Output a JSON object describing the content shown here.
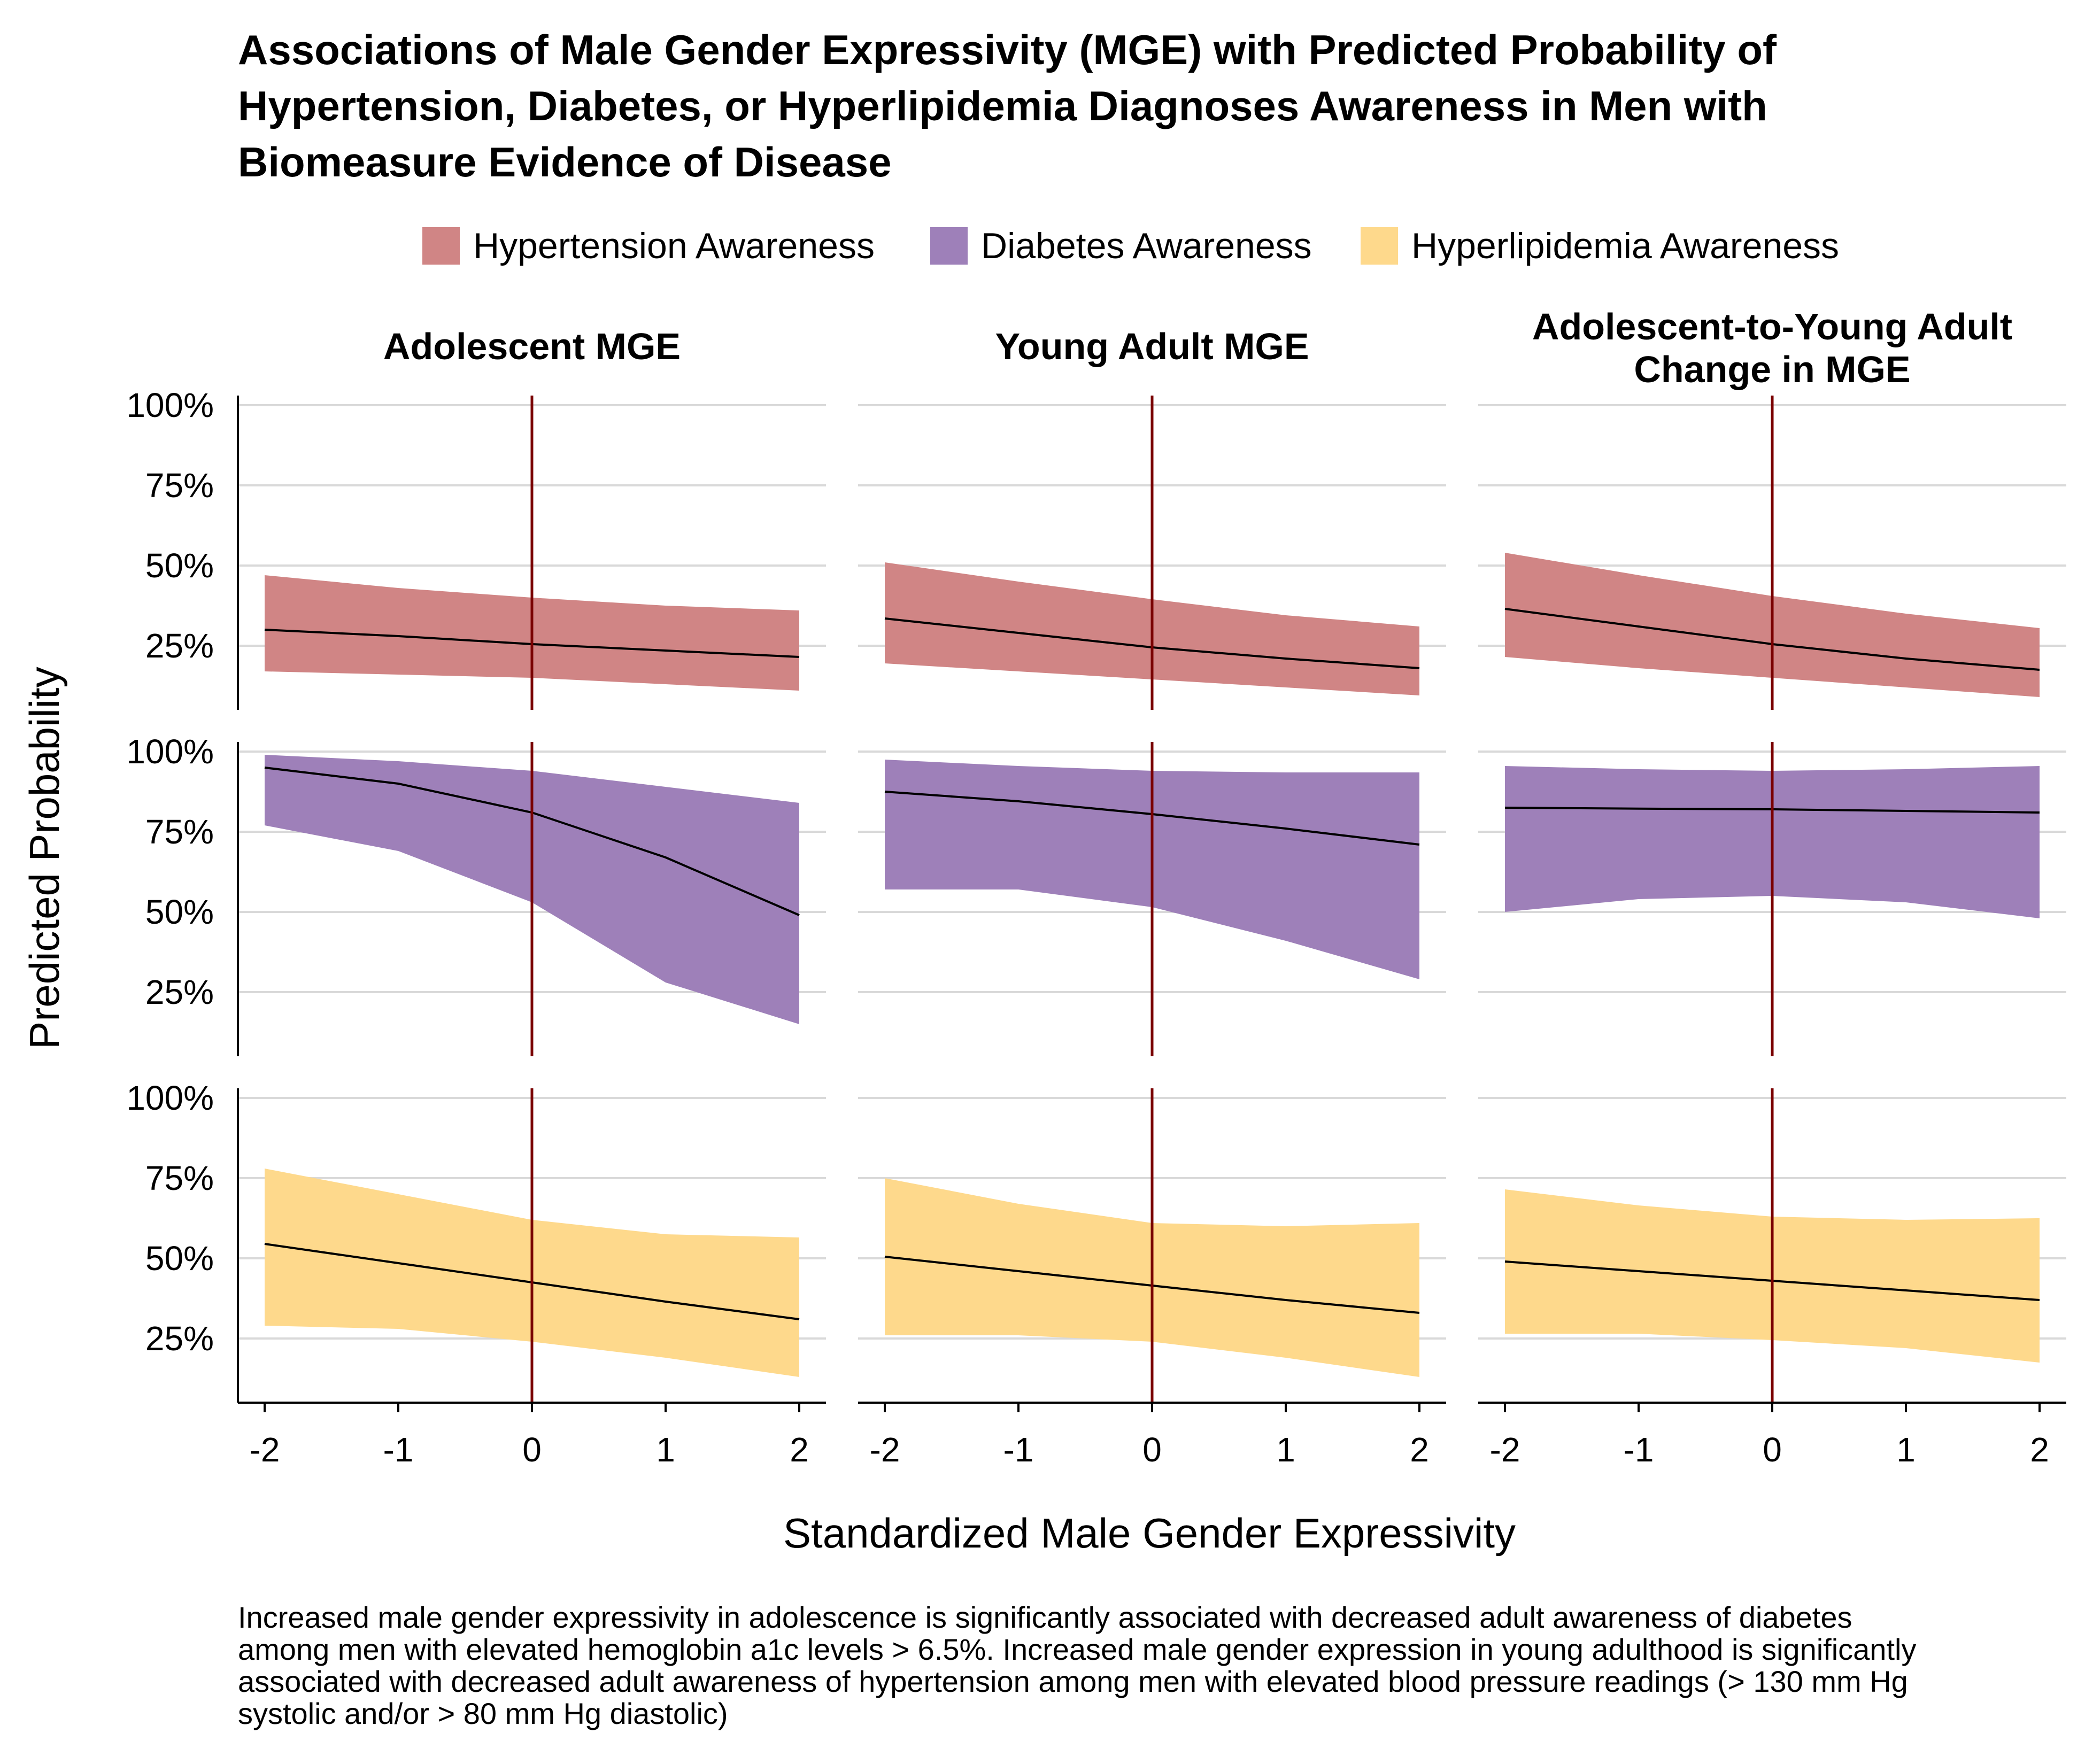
{
  "chart_data": {
    "type": "area",
    "title": [
      "Associations of Male Gender Expressivity (MGE) with Predicted Probability of",
      "Hypertension, Diabetes, or Hyperlipidemia Diagnoses Awareness in Men with",
      "Biomeasure Evidence of Disease"
    ],
    "xlabel": "Standardized Male Gender Expressivity",
    "ylabel": "Predicted Probability",
    "xlim": [
      -2,
      2
    ],
    "ylim": [
      0.05,
      1.03
    ],
    "x_ticks": [
      -2,
      -1,
      0,
      1,
      2
    ],
    "x_tick_labels": [
      "-2",
      "-1",
      "0",
      "1",
      "2"
    ],
    "y_ticks": [
      0.25,
      0.5,
      0.75,
      1.0
    ],
    "y_tick_labels": [
      "25%",
      "50%",
      "75%",
      "100%"
    ],
    "reference_line_x": 0,
    "reference_line_color": "#7a0000",
    "grid": "horizontal",
    "legend_position": "top",
    "legend": [
      {
        "name": "Hypertension Awareness",
        "color": "#d08585"
      },
      {
        "name": "Diabetes Awareness",
        "color": "#9e80b9"
      },
      {
        "name": "Hyperlipidemia Awareness",
        "color": "#fed98c"
      }
    ],
    "columns": [
      {
        "strip": [
          "Adolescent MGE"
        ]
      },
      {
        "strip": [
          "Young Adult MGE"
        ]
      },
      {
        "strip": [
          "Adolescent-to-Young Adult",
          "Change in MGE"
        ]
      }
    ],
    "x": [
      -2,
      -1,
      0,
      1,
      2
    ],
    "rows": [
      {
        "series": "Hypertension Awareness",
        "panels": [
          {
            "fit": [
              0.3,
              0.28,
              0.255,
              0.235,
              0.215
            ],
            "lower": [
              0.17,
              0.16,
              0.15,
              0.13,
              0.11
            ],
            "upper": [
              0.47,
              0.43,
              0.4,
              0.375,
              0.36
            ]
          },
          {
            "fit": [
              0.335,
              0.29,
              0.245,
              0.21,
              0.18
            ],
            "lower": [
              0.195,
              0.17,
              0.145,
              0.12,
              0.095
            ],
            "upper": [
              0.51,
              0.45,
              0.395,
              0.345,
              0.31
            ]
          },
          {
            "fit": [
              0.365,
              0.31,
              0.255,
              0.21,
              0.175
            ],
            "lower": [
              0.215,
              0.18,
              0.15,
              0.12,
              0.09
            ],
            "upper": [
              0.54,
              0.47,
              0.405,
              0.35,
              0.305
            ]
          }
        ]
      },
      {
        "series": "Diabetes Awareness",
        "panels": [
          {
            "fit": [
              0.95,
              0.9,
              0.81,
              0.67,
              0.49
            ],
            "lower": [
              0.77,
              0.69,
              0.53,
              0.28,
              0.15
            ],
            "upper": [
              0.99,
              0.97,
              0.94,
              0.89,
              0.84
            ]
          },
          {
            "fit": [
              0.875,
              0.845,
              0.805,
              0.76,
              0.71
            ],
            "lower": [
              0.57,
              0.57,
              0.515,
              0.41,
              0.29
            ],
            "upper": [
              0.975,
              0.955,
              0.94,
              0.935,
              0.935
            ]
          },
          {
            "fit": [
              0.825,
              0.822,
              0.82,
              0.815,
              0.81
            ],
            "lower": [
              0.5,
              0.54,
              0.55,
              0.53,
              0.48
            ],
            "upper": [
              0.955,
              0.945,
              0.94,
              0.945,
              0.955
            ]
          }
        ]
      },
      {
        "series": "Hyperlipidemia Awareness",
        "panels": [
          {
            "fit": [
              0.545,
              0.485,
              0.425,
              0.365,
              0.31
            ],
            "lower": [
              0.29,
              0.28,
              0.24,
              0.19,
              0.13
            ],
            "upper": [
              0.78,
              0.7,
              0.62,
              0.575,
              0.565
            ]
          },
          {
            "fit": [
              0.505,
              0.46,
              0.415,
              0.37,
              0.33
            ],
            "lower": [
              0.26,
              0.26,
              0.24,
              0.19,
              0.13
            ],
            "upper": [
              0.75,
              0.67,
              0.61,
              0.6,
              0.61
            ]
          },
          {
            "fit": [
              0.49,
              0.46,
              0.43,
              0.4,
              0.37
            ],
            "lower": [
              0.265,
              0.265,
              0.245,
              0.22,
              0.175
            ],
            "upper": [
              0.715,
              0.665,
              0.63,
              0.62,
              0.625
            ]
          }
        ]
      }
    ],
    "caption": [
      "Increased male gender expressivity in adolescence is significantly associated with decreased adult awareness of diabetes",
      "among men with elevated hemoglobin a1c levels > 6.5%. Increased male gender expression in young adulthood is significantly",
      "associated with decreased adult awareness of hypertension among men with elevated blood pressure readings (> 130 mm Hg",
      "systolic and/or > 80 mm Hg diastolic)"
    ]
  }
}
